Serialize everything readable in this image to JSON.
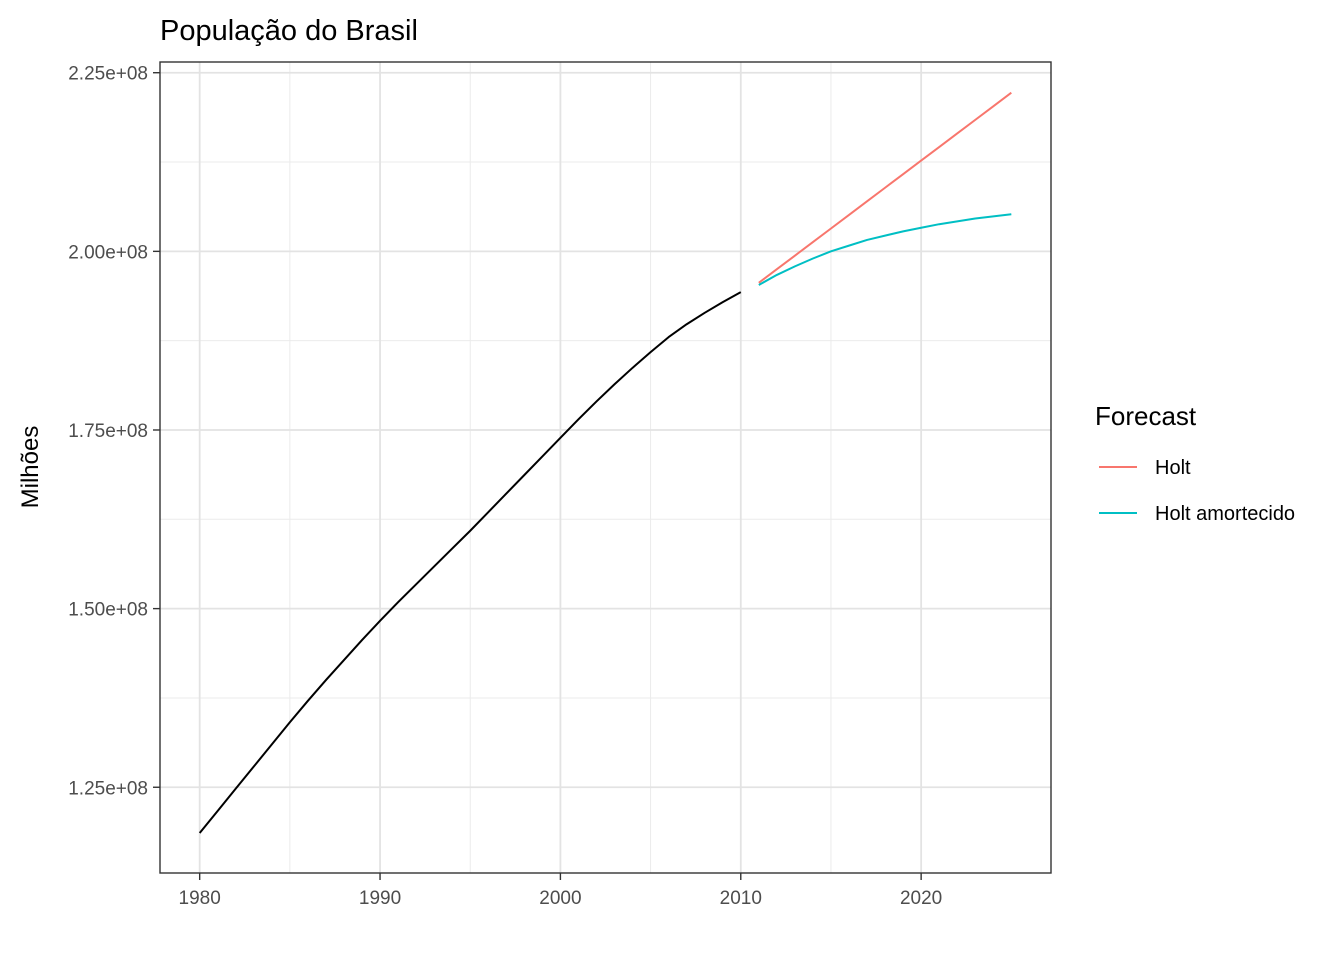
{
  "chart_data": {
    "type": "line",
    "title": "População do Brasil",
    "xlabel": "",
    "ylabel": "Milhões",
    "xlim": [
      1977.8,
      2027.2
    ],
    "ylim": [
      113000000,
      226500000
    ],
    "x_ticks": [
      1980,
      1990,
      2000,
      2010,
      2020
    ],
    "x_tick_labels": [
      "1980",
      "1990",
      "2000",
      "2010",
      "2020"
    ],
    "y_ticks": [
      125000000,
      150000000,
      175000000,
      200000000,
      225000000
    ],
    "y_tick_labels": [
      "1.25e+08",
      "1.50e+08",
      "1.75e+08",
      "2.00e+08",
      "2.25e+08"
    ],
    "grid": true,
    "legend": {
      "title": "Forecast",
      "position": "right",
      "entries": [
        "Holt",
        "Holt amortecido"
      ]
    },
    "series": [
      {
        "color": "#000000",
        "x": [
          1980,
          1981,
          1982,
          1983,
          1984,
          1985,
          1986,
          1987,
          1988,
          1989,
          1990,
          1991,
          1992,
          1993,
          1994,
          1995,
          1996,
          1997,
          1998,
          1999,
          2000,
          2001,
          2002,
          2003,
          2004,
          2005,
          2006,
          2007,
          2008,
          2009,
          2010
        ],
        "y": [
          118600000,
          121700000,
          124800000,
          127900000,
          131000000,
          134100000,
          137100000,
          140000000,
          142800000,
          145600000,
          148300000,
          150900000,
          153400000,
          155900000,
          158400000,
          160900000,
          163500000,
          166100000,
          168700000,
          171300000,
          173900000,
          176500000,
          179000000,
          181400000,
          183700000,
          185900000,
          188000000,
          189800000,
          191400000,
          192900000,
          194300000
        ]
      },
      {
        "name": "Holt",
        "color": "#F8766D",
        "x": [
          2011,
          2012,
          2013,
          2014,
          2015,
          2016,
          2017,
          2018,
          2019,
          2020,
          2021,
          2022,
          2023,
          2024,
          2025
        ],
        "y": [
          195600000,
          197500000,
          199400000,
          201300000,
          203200000,
          205100000,
          207000000,
          208900000,
          210800000,
          212700000,
          214600000,
          216500000,
          218400000,
          220300000,
          222200000
        ]
      },
      {
        "name": "Holt amortecido",
        "color": "#00BFC4",
        "x": [
          2011,
          2012,
          2013,
          2014,
          2015,
          2016,
          2017,
          2018,
          2019,
          2020,
          2021,
          2022,
          2023,
          2024,
          2025
        ],
        "y": [
          195300000,
          196700000,
          197900000,
          199000000,
          200000000,
          200800000,
          201600000,
          202200000,
          202800000,
          203300000,
          203800000,
          204200000,
          204600000,
          204900000,
          205200000
        ]
      }
    ]
  }
}
